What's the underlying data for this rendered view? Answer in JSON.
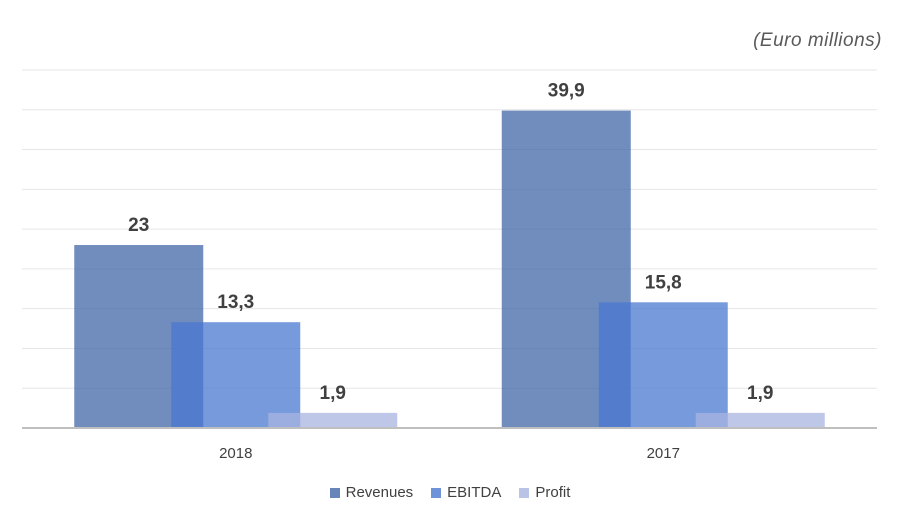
{
  "chart_data": {
    "type": "bar",
    "unit_note": "(Euro millions)",
    "categories": [
      "2018",
      "2017"
    ],
    "series": [
      {
        "name": "Revenues",
        "values": [
          23,
          39.9
        ],
        "labels": [
          "23",
          "39,9"
        ],
        "color": "#4167a8"
      },
      {
        "name": "EBITDA",
        "values": [
          13.3,
          15.8
        ],
        "labels": [
          "13,3",
          "15,8"
        ],
        "color": "#4a78d0"
      },
      {
        "name": "Profit",
        "values": [
          1.9,
          1.9
        ],
        "labels": [
          "1,9",
          "1,9"
        ],
        "color": "#a8b4e0"
      }
    ],
    "ylim": [
      0,
      45
    ],
    "grid": true,
    "legend_position": "bottom"
  }
}
